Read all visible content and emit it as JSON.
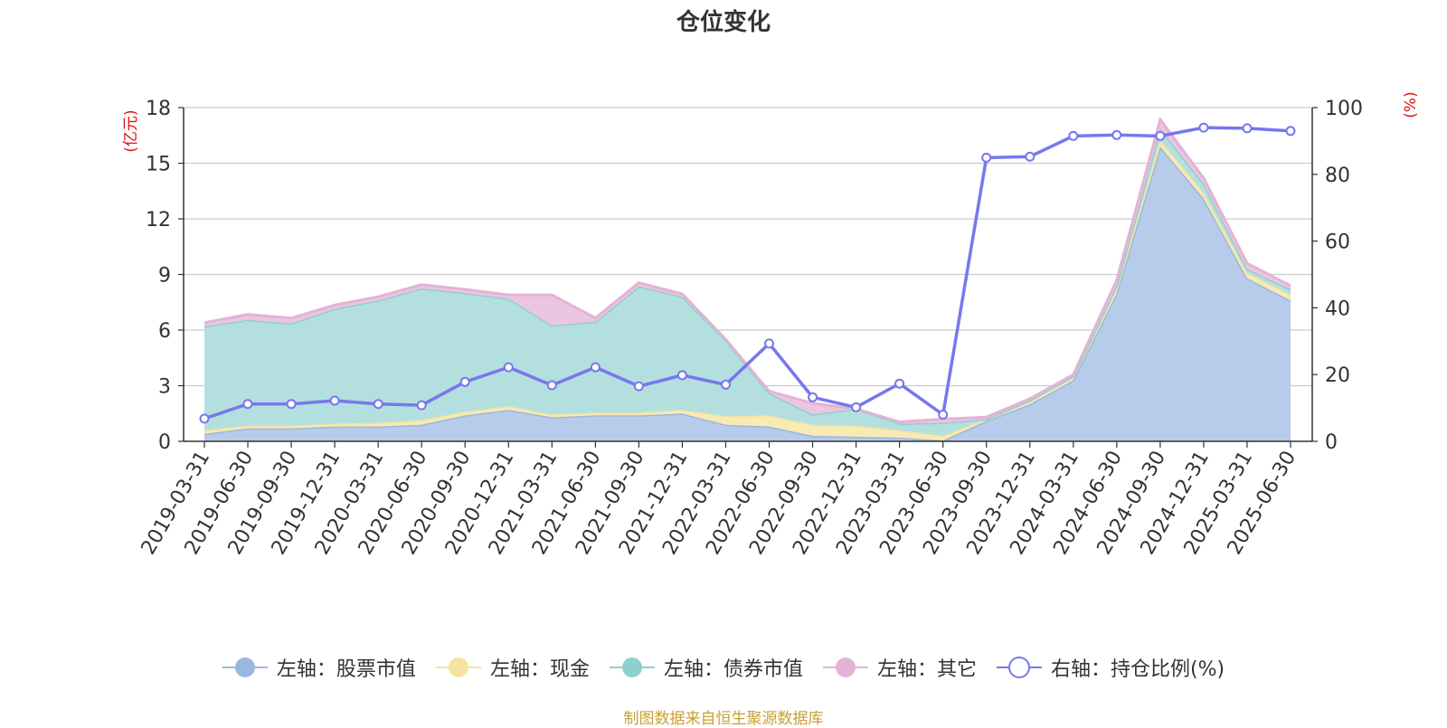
{
  "chart_data": {
    "type": "area",
    "title": "仓位变化",
    "left_axis_label": "(亿元)",
    "right_axis_label": "(%)",
    "left_ylim": [
      0,
      18
    ],
    "left_ticks": [
      "0",
      "3",
      "6",
      "9",
      "12",
      "15",
      "18"
    ],
    "right_ylim": [
      0,
      100
    ],
    "right_ticks": [
      "0",
      "20",
      "40",
      "60",
      "80",
      "100"
    ],
    "grid": true,
    "legend_position": "bottom",
    "categories": [
      "2019-03-31",
      "2019-06-30",
      "2019-09-30",
      "2019-12-31",
      "2020-03-31",
      "2020-06-30",
      "2020-09-30",
      "2020-12-31",
      "2021-03-31",
      "2021-06-30",
      "2021-09-30",
      "2021-12-31",
      "2022-03-31",
      "2022-06-30",
      "2022-09-30",
      "2022-12-31",
      "2023-03-31",
      "2023-06-30",
      "2023-09-30",
      "2023-12-31",
      "2024-03-31",
      "2024-06-30",
      "2024-09-30",
      "2024-12-31",
      "2025-03-31",
      "2025-06-30"
    ],
    "series": [
      {
        "name": "左轴：股票市值",
        "axis": "left",
        "color": "#9bb7e0",
        "fill": "#b7cbea",
        "values": [
          0.4,
          0.7,
          0.7,
          0.8,
          0.8,
          0.9,
          1.4,
          1.7,
          1.3,
          1.4,
          1.4,
          1.5,
          0.9,
          0.8,
          0.3,
          0.25,
          0.2,
          0.05,
          1.1,
          2.0,
          3.3,
          8.0,
          15.9,
          13.1,
          8.8,
          7.6
        ]
      },
      {
        "name": "左轴：现金",
        "axis": "left",
        "color": "#f5e3a0",
        "fill": "#f8eab5",
        "values": [
          0.2,
          0.15,
          0.15,
          0.15,
          0.2,
          0.25,
          0.2,
          0.2,
          0.15,
          0.15,
          0.15,
          0.2,
          0.45,
          0.6,
          0.6,
          0.6,
          0.4,
          0.25,
          0.1,
          0.2,
          0.2,
          0.3,
          0.35,
          0.3,
          0.3,
          0.3
        ]
      },
      {
        "name": "左轴：债券市值",
        "axis": "left",
        "color": "#8fd0cf",
        "fill": "#b3e0df",
        "values": [
          5.6,
          5.7,
          5.5,
          6.2,
          6.6,
          7.1,
          6.4,
          5.8,
          4.8,
          4.9,
          6.8,
          6.1,
          4.1,
          1.2,
          0.55,
          0.9,
          0.35,
          0.7,
          0.0,
          0.0,
          0.0,
          0.1,
          0.6,
          0.5,
          0.2,
          0.3
        ]
      },
      {
        "name": "左轴：其它",
        "axis": "left",
        "color": "#e3b3d6",
        "fill": "#ecc5e1",
        "values": [
          0.2,
          0.3,
          0.3,
          0.2,
          0.2,
          0.2,
          0.2,
          0.2,
          1.65,
          0.2,
          0.2,
          0.15,
          0.05,
          0.1,
          0.6,
          0.0,
          0.1,
          0.2,
          0.1,
          0.1,
          0.1,
          0.3,
          0.5,
          0.3,
          0.3,
          0.2
        ]
      },
      {
        "name": "右轴：持仓比例(%)",
        "axis": "right",
        "color": "#7777ee",
        "type": "line",
        "values": [
          6.8,
          11.2,
          11.2,
          12.2,
          11.2,
          10.8,
          17.8,
          22.2,
          16.8,
          22.2,
          16.5,
          19.8,
          17.0,
          29.3,
          13.2,
          10.2,
          17.3,
          8.0,
          85.0,
          85.3,
          91.5,
          91.8,
          91.5,
          94.0,
          93.8,
          93.0
        ]
      }
    ]
  },
  "source_note": "制图数据来自恒生聚源数据库"
}
